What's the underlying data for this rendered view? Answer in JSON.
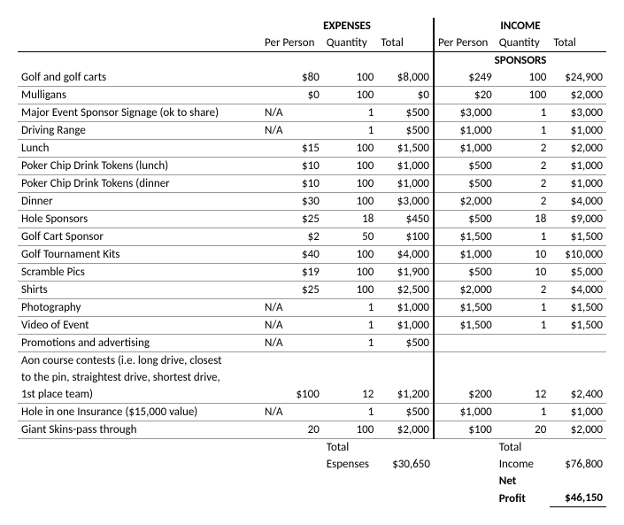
{
  "headers": {
    "expenses": "EXPENSES",
    "income": "INCOME",
    "perperson": "Per Person",
    "quantity": "Quantity",
    "total": "Total",
    "sponsors": "SPONSORS"
  },
  "rows": [
    {
      "label": "Golf and golf carts",
      "e_pp": "$80",
      "e_q": "100",
      "e_t": "$8,000",
      "i_pp": "$249",
      "i_q": "100",
      "i_t": "$24,900",
      "border": true
    },
    {
      "label": "Mulligans",
      "e_pp": "$0",
      "e_q": "100",
      "e_t": "$0",
      "i_pp": "$20",
      "i_q": "100",
      "i_t": "$2,000",
      "border": true
    },
    {
      "label": "Major Event Sponsor Signage (ok to share)",
      "e_pp": "N/A",
      "e_q": "1",
      "e_t": "$500",
      "i_pp": "$3,000",
      "i_q": "1",
      "i_t": "$3,000",
      "border": true,
      "ppLeft": true
    },
    {
      "label": "Driving Range",
      "e_pp": "N/A",
      "e_q": "1",
      "e_t": "$500",
      "i_pp": "$1,000",
      "i_q": "1",
      "i_t": "$1,000",
      "border": true,
      "ppLeft": true
    },
    {
      "label": "Lunch",
      "e_pp": "$15",
      "e_q": "100",
      "e_t": "$1,500",
      "i_pp": "$1,000",
      "i_q": "2",
      "i_t": "$2,000",
      "border": true
    },
    {
      "label": "Poker Chip Drink Tokens (lunch)",
      "e_pp": "$10",
      "e_q": "100",
      "e_t": "$1,000",
      "i_pp": "$500",
      "i_q": "2",
      "i_t": "$1,000",
      "border": true
    },
    {
      "label": "Poker Chip Drink Tokens (dinner",
      "e_pp": "$10",
      "e_q": "100",
      "e_t": "$1,000",
      "i_pp": "$500",
      "i_q": "2",
      "i_t": "$1,000",
      "border": true
    },
    {
      "label": "Dinner",
      "e_pp": "$30",
      "e_q": "100",
      "e_t": "$3,000",
      "i_pp": "$2,000",
      "i_q": "2",
      "i_t": "$4,000",
      "border": true
    },
    {
      "label": "Hole Sponsors",
      "e_pp": "$25",
      "e_q": "18",
      "e_t": "$450",
      "i_pp": "$500",
      "i_q": "18",
      "i_t": "$9,000",
      "border": true
    },
    {
      "label": "Golf Cart Sponsor",
      "e_pp": "$2",
      "e_q": "50",
      "e_t": "$100",
      "i_pp": "$1,500",
      "i_q": "1",
      "i_t": "$1,500",
      "border": true
    },
    {
      "label": "Golf Tournament Kits",
      "e_pp": "$40",
      "e_q": "100",
      "e_t": "$4,000",
      "i_pp": "$1,000",
      "i_q": "10",
      "i_t": "$10,000",
      "border": true
    },
    {
      "label": "Scramble Pics",
      "e_pp": "$19",
      "e_q": "100",
      "e_t": "$1,900",
      "i_pp": "$500",
      "i_q": "10",
      "i_t": "$5,000",
      "border": true
    },
    {
      "label": "Shirts",
      "e_pp": "$25",
      "e_q": "100",
      "e_t": "$2,500",
      "i_pp": "$2,000",
      "i_q": "2",
      "i_t": "$4,000",
      "border": true
    },
    {
      "label": "Photography",
      "e_pp": "N/A",
      "e_q": "1",
      "e_t": "$1,000",
      "i_pp": "$1,500",
      "i_q": "1",
      "i_t": "$1,500",
      "border": true,
      "ppLeft": true
    },
    {
      "label": "Video of Event",
      "e_pp": "N/A",
      "e_q": "1",
      "e_t": "$1,000",
      "i_pp": "$1,500",
      "i_q": "1",
      "i_t": "$1,500",
      "border": true,
      "ppLeft": true
    },
    {
      "label": "Promotions and advertising",
      "e_pp": "N/A",
      "e_q": "1",
      "e_t": "$500",
      "i_pp": "",
      "i_q": "",
      "i_t": "",
      "border": true,
      "ppLeft": true
    },
    {
      "label": "Aon course contests (i.e. long drive, closest",
      "e_pp": "",
      "e_q": "",
      "e_t": "",
      "i_pp": "",
      "i_q": "",
      "i_t": "",
      "border": false
    },
    {
      "label": "to the pin, straightest drive, shortest drive,",
      "e_pp": "",
      "e_q": "",
      "e_t": "",
      "i_pp": "",
      "i_q": "",
      "i_t": "",
      "border": false
    },
    {
      "label": "1st place team)",
      "e_pp": "$100",
      "e_q": "12",
      "e_t": "$1,200",
      "i_pp": "$200",
      "i_q": "12",
      "i_t": "$2,400",
      "border": true
    },
    {
      "label": "Hole in one Insurance ($15,000 value)",
      "e_pp": "N/A",
      "e_q": "1",
      "e_t": "$500",
      "i_pp": "$1,000",
      "i_q": "1",
      "i_t": "$1,000",
      "border": true,
      "ppLeft": true
    },
    {
      "label": "Giant Skins-pass through",
      "e_pp": "20",
      "e_q": "100",
      "e_t": "$2,000",
      "i_pp": "$100",
      "i_q": "20",
      "i_t": "$2,000",
      "border": true
    }
  ],
  "totals": {
    "exp_label1": "Total",
    "exp_label2": "Espenses",
    "exp_value": "$30,650",
    "inc_label1": "Total",
    "inc_label2": "Income",
    "inc_value": "$76,800",
    "net_label1": "Net",
    "net_label2": "Profit",
    "net_value": "$46,150"
  }
}
